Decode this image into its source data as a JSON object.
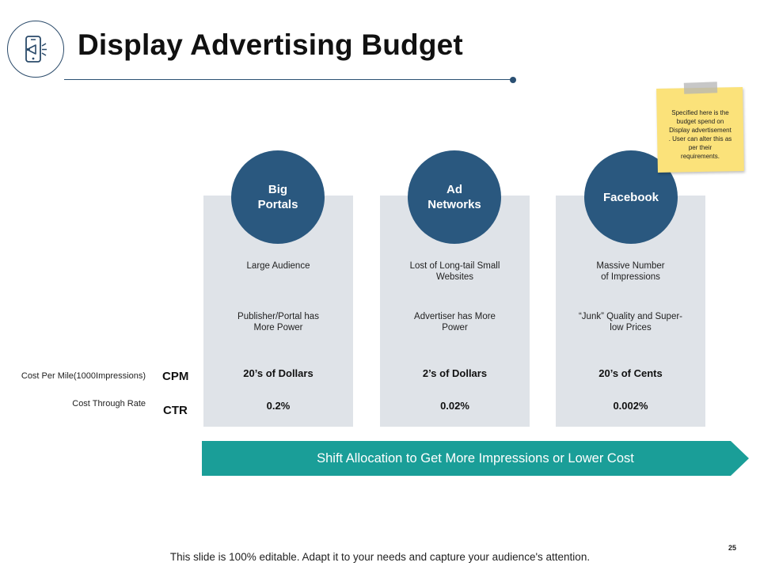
{
  "title": "Display Advertising Budget",
  "header_icon": "mobile-megaphone-icon",
  "columns": [
    {
      "heading": "Big\nPortals",
      "audience": "Large Audience",
      "power": "Publisher/Portal has\nMore Power",
      "cpm": "20’s of Dollars",
      "ctr": "0.2%"
    },
    {
      "heading": "Ad\nNetworks",
      "audience": "Lost of Long-tail Small\nWebsites",
      "power": "Advertiser has More\nPower",
      "cpm": "2’s of Dollars",
      "ctr": "0.02%"
    },
    {
      "heading": "Facebook",
      "audience": "Massive Number\nof Impressions",
      "power": "“Junk” Quality and Super-\nlow Prices",
      "cpm": "20’s of Cents",
      "ctr": "0.002%"
    }
  ],
  "rows": {
    "cpm_desc": "Cost Per Mile(1000Impressions)",
    "cpm_abbr": "CPM",
    "ctr_desc": "Cost Through Rate",
    "ctr_abbr": "CTR"
  },
  "banner": "Shift Allocation to Get More Impressions or Lower Cost",
  "sticky_note": "Specified here is the\nbudget spend on\nDisplay advertisement\n. User can alter this as\nper their\nrequirements.",
  "footer": "This slide is 100% editable. Adapt it to your needs and capture your audience's attention.",
  "page_number": "25",
  "colors": {
    "circle": "#2a587f",
    "column_bg": "#dfe3e8",
    "banner": "#1a9e98",
    "sticky": "#fbe27a"
  }
}
